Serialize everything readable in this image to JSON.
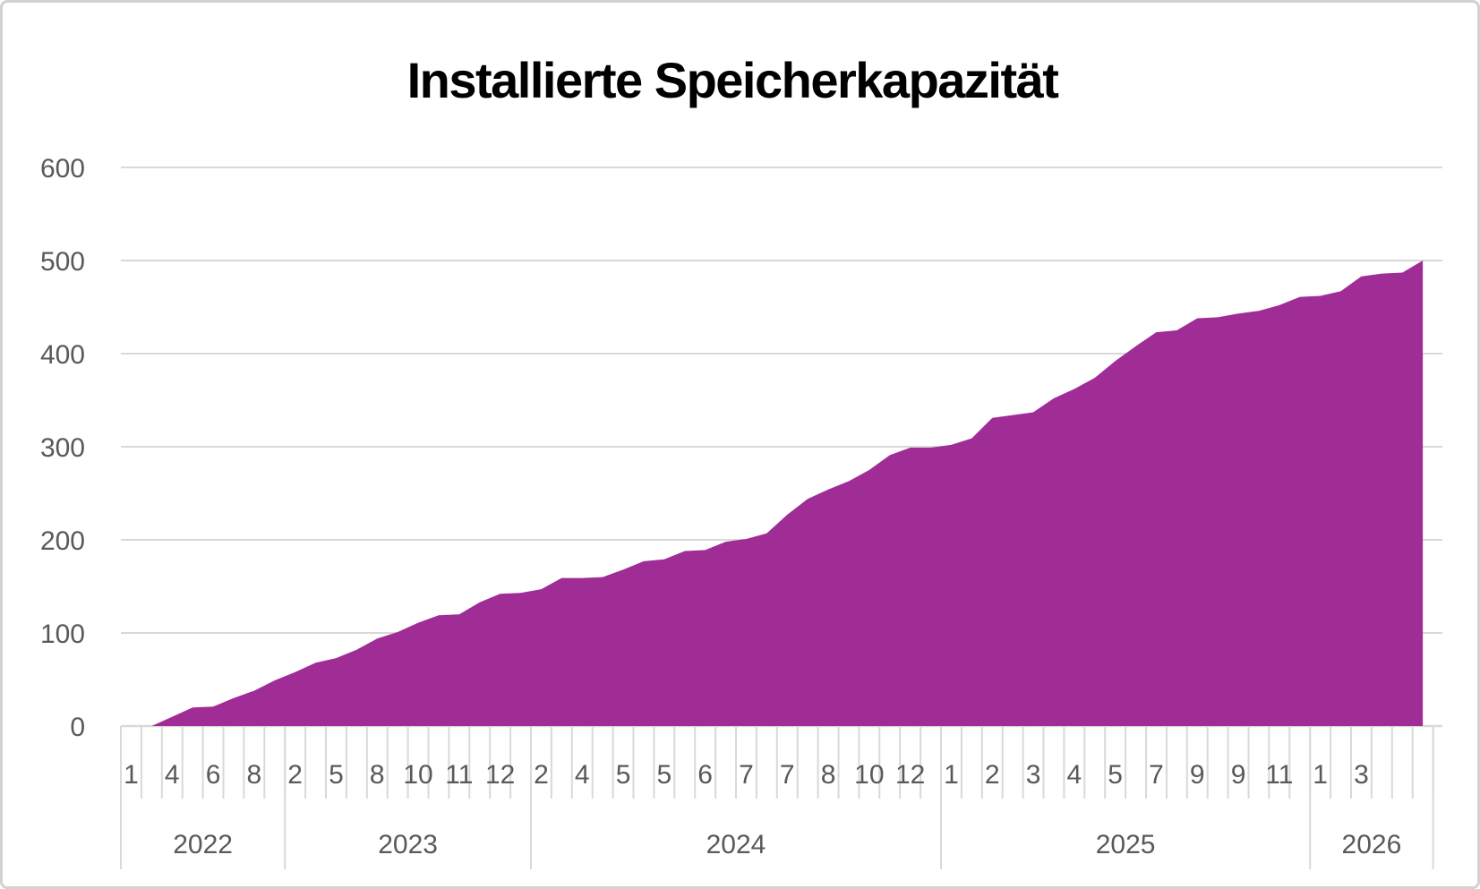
{
  "chart_data": {
    "type": "area",
    "title": "Installierte Speicherkapazität",
    "categories": [
      "1",
      "",
      "4",
      "",
      "6",
      "",
      "8",
      "",
      "2",
      "",
      "5",
      "",
      "8",
      "",
      "10",
      "",
      "11",
      "",
      "12",
      "",
      "2",
      "",
      "4",
      "",
      "5",
      "",
      "5",
      "",
      "6",
      "",
      "7",
      "",
      "7",
      "",
      "8",
      "",
      "10",
      "",
      "12",
      "",
      "1",
      "",
      "2",
      "",
      "3",
      "",
      "4",
      "",
      "5",
      "",
      "7",
      "",
      "9",
      "",
      "9",
      "",
      "11",
      "",
      "1",
      "",
      "3",
      "",
      "",
      ""
    ],
    "values": [
      0,
      0,
      10,
      20,
      21,
      30,
      38,
      49,
      58,
      68,
      73,
      82,
      94,
      101,
      111,
      119,
      120,
      133,
      142,
      143,
      147,
      159,
      159,
      160,
      168,
      177,
      179,
      188,
      189,
      198,
      201,
      207,
      227,
      244,
      254,
      263,
      275,
      291,
      299,
      299,
      302,
      309,
      331,
      334,
      337,
      352,
      362,
      374,
      392,
      408,
      423,
      425,
      438,
      439,
      443,
      446,
      452,
      461,
      462,
      467,
      483,
      486,
      487,
      500
    ],
    "year_groups": [
      {
        "label": "2022",
        "start": 0,
        "count": 8
      },
      {
        "label": "2023",
        "start": 8,
        "count": 12
      },
      {
        "label": "2024",
        "start": 20,
        "count": 20
      },
      {
        "label": "2025",
        "start": 40,
        "count": 18
      },
      {
        "label": "2026",
        "start": 58,
        "count": 6
      }
    ],
    "ylim": [
      0,
      600
    ],
    "yticks": [
      0,
      100,
      200,
      300,
      400,
      500,
      600
    ],
    "xlabel": "",
    "ylabel": "",
    "grid": "horizontal",
    "legend": "none",
    "colors": {
      "area_fill": "#A02C96",
      "gridline": "#D9D9D9",
      "tick": "#D9D9D9",
      "axis_label": "#595959",
      "title": "#000000",
      "background": "#FFFFFF",
      "frame_border": "#D2D2D2"
    }
  }
}
